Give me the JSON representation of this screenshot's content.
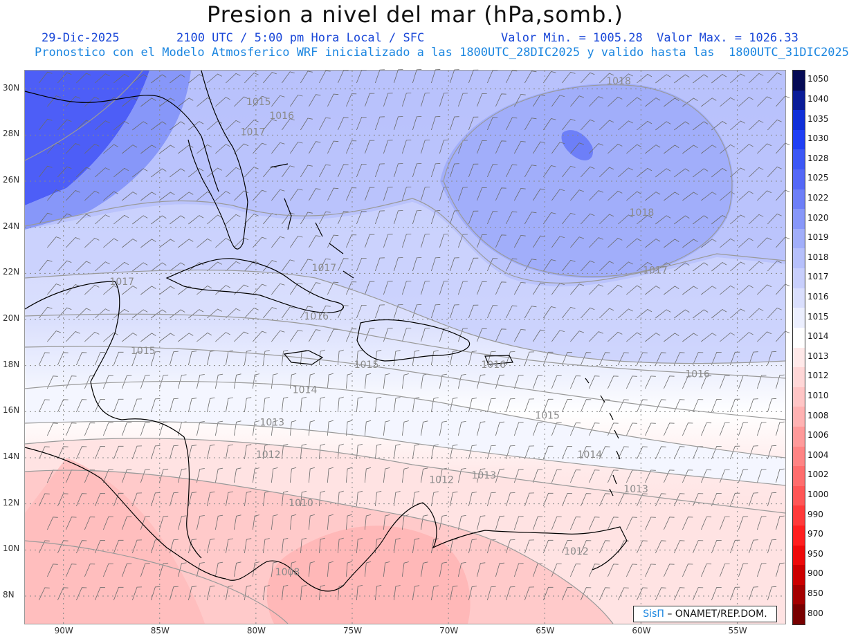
{
  "header": {
    "title": "Presion a nivel del mar (hPa,somb.)",
    "date": "29-Dic-2025",
    "time": "2100 UTC / 5:00 pm Hora Local / SFC",
    "minmax": "Valor Min. = 1005.28  Valor Max. = 1026.33",
    "valid": "Pronostico con el Modelo Atmosferico WRF inicializado a las 1800UTC_28DIC2025 y valido hasta las  1800UTC_31DIC2025"
  },
  "map": {
    "lon_range": [
      -92,
      -52.5
    ],
    "lat_range": [
      6.8,
      30.8
    ],
    "lat_labels": [
      "30N",
      "28N",
      "26N",
      "24N",
      "22N",
      "20N",
      "18N",
      "16N",
      "14N",
      "12N",
      "10N",
      "8N"
    ],
    "lat_values": [
      30,
      28,
      26,
      24,
      22,
      20,
      18,
      16,
      14,
      12,
      10,
      8
    ],
    "lon_labels": [
      "90W",
      "85W",
      "80W",
      "75W",
      "70W",
      "65W",
      "60W",
      "55W"
    ],
    "lon_values": [
      -90,
      -85,
      -80,
      -75,
      -70,
      -65,
      -60,
      -55
    ],
    "contour_labels": [
      {
        "text": "1018",
        "lon": -61.8,
        "lat": 30.2
      },
      {
        "text": "1015",
        "lon": -80.5,
        "lat": 29.3
      },
      {
        "text": "1016",
        "lon": -79.3,
        "lat": 28.7
      },
      {
        "text": "1017",
        "lon": -80.8,
        "lat": 28.0
      },
      {
        "text": "1018",
        "lon": -60.6,
        "lat": 24.5
      },
      {
        "text": "1017",
        "lon": -59.9,
        "lat": 22.0
      },
      {
        "text": "1017",
        "lon": -87.6,
        "lat": 21.5
      },
      {
        "text": "1017",
        "lon": -77.1,
        "lat": 22.1
      },
      {
        "text": "1016",
        "lon": -77.5,
        "lat": 20.0
      },
      {
        "text": "1015",
        "lon": -86.5,
        "lat": 18.5
      },
      {
        "text": "1015",
        "lon": -74.9,
        "lat": 17.9
      },
      {
        "text": "1016",
        "lon": -68.3,
        "lat": 17.9
      },
      {
        "text": "1016",
        "lon": -57.7,
        "lat": 17.5
      },
      {
        "text": "1014",
        "lon": -78.1,
        "lat": 16.8
      },
      {
        "text": "1015",
        "lon": -65.5,
        "lat": 15.7
      },
      {
        "text": "1013",
        "lon": -79.8,
        "lat": 15.4
      },
      {
        "text": "1014",
        "lon": -63.3,
        "lat": 14.0
      },
      {
        "text": "1012",
        "lon": -80.0,
        "lat": 14.0
      },
      {
        "text": "1013",
        "lon": -68.8,
        "lat": 13.1
      },
      {
        "text": "1012",
        "lon": -71.0,
        "lat": 12.9
      },
      {
        "text": "1013",
        "lon": -60.9,
        "lat": 12.5
      },
      {
        "text": "1010",
        "lon": -78.3,
        "lat": 11.9
      },
      {
        "text": "1012",
        "lon": -64.0,
        "lat": 9.8
      },
      {
        "text": "1008",
        "lon": -79.0,
        "lat": 8.9
      }
    ]
  },
  "colorbar": {
    "levels": [
      "1050",
      "1040",
      "1035",
      "1030",
      "1028",
      "1025",
      "1022",
      "1020",
      "1019",
      "1018",
      "1017",
      "1016",
      "1015",
      "1014",
      "1013",
      "1012",
      "1010",
      "1008",
      "1006",
      "1004",
      "1002",
      "1000",
      "990",
      "970",
      "950",
      "900",
      "850",
      "800"
    ],
    "colors": [
      "#050a55",
      "#0a1c98",
      "#0f2fd8",
      "#1f3ff5",
      "#3c58f6",
      "#5468f7",
      "#6d7ff8",
      "#8797f9",
      "#a1aefa",
      "#b6c0fb",
      "#c8cffc",
      "#dadffd",
      "#eceffe",
      "#ffffff",
      "#ffe9e9",
      "#ffd7d7",
      "#ffc5c5",
      "#ffb2b2",
      "#ff9a9a",
      "#ff8484",
      "#ff6d6d",
      "#ff5656",
      "#ff3a3a",
      "#ff1f1f",
      "#ee0a0a",
      "#cc0000",
      "#a40000",
      "#780000"
    ]
  },
  "credit": {
    "brand": "SisΠ",
    "text": " – ONAMET/REP.DOM."
  }
}
